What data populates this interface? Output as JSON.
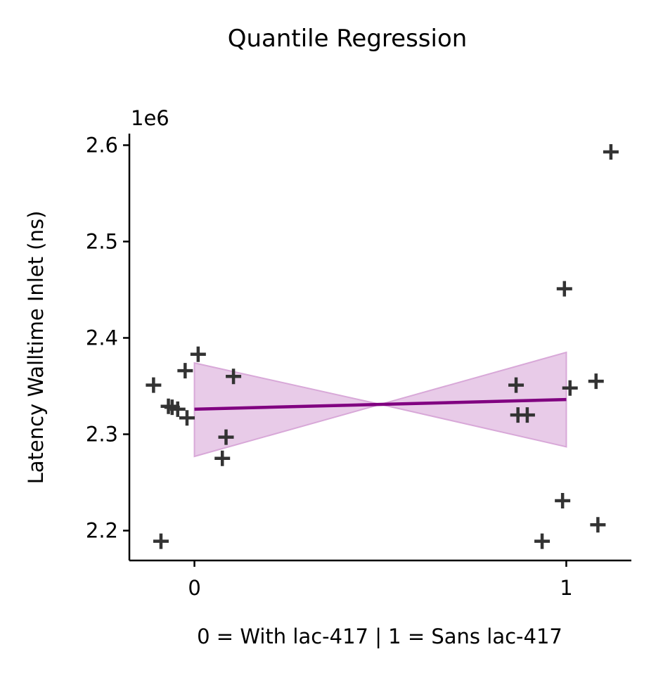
{
  "chart_data": {
    "type": "scatter",
    "title": "Quantile Regression",
    "xlabel": "0 = With lac-417 | 1 = Sans lac-417",
    "ylabel": "Latency Walltime Inlet (ns)",
    "y_offset_label": "1e6",
    "xlim": [
      -0.175,
      1.175
    ],
    "ylim": [
      2.169,
      2.612
    ],
    "x_ticks": [
      {
        "value": 0,
        "label": "0"
      },
      {
        "value": 1,
        "label": "1"
      }
    ],
    "y_ticks": [
      {
        "value": 2.2,
        "label": "2.2"
      },
      {
        "value": 2.3,
        "label": "2.3"
      },
      {
        "value": 2.4,
        "label": "2.4"
      },
      {
        "value": 2.5,
        "label": "2.5"
      },
      {
        "value": 2.6,
        "label": "2.6"
      }
    ],
    "grid": false,
    "points": [
      {
        "x": -0.11,
        "y": 2.351
      },
      {
        "x": -0.09,
        "y": 2.189
      },
      {
        "x": -0.07,
        "y": 2.329
      },
      {
        "x": -0.06,
        "y": 2.328
      },
      {
        "x": -0.045,
        "y": 2.326
      },
      {
        "x": -0.025,
        "y": 2.366
      },
      {
        "x": -0.02,
        "y": 2.317
      },
      {
        "x": 0.01,
        "y": 2.383
      },
      {
        "x": 0.075,
        "y": 2.275
      },
      {
        "x": 0.085,
        "y": 2.297
      },
      {
        "x": 0.105,
        "y": 2.36
      },
      {
        "x": 0.865,
        "y": 2.351
      },
      {
        "x": 0.87,
        "y": 2.32
      },
      {
        "x": 0.895,
        "y": 2.32
      },
      {
        "x": 0.935,
        "y": 2.189
      },
      {
        "x": 0.99,
        "y": 2.231
      },
      {
        "x": 0.995,
        "y": 2.451
      },
      {
        "x": 1.01,
        "y": 2.348
      },
      {
        "x": 1.08,
        "y": 2.355
      },
      {
        "x": 1.085,
        "y": 2.206
      },
      {
        "x": 1.12,
        "y": 2.593
      }
    ],
    "regression_line": {
      "x": [
        0,
        1
      ],
      "y": [
        2.326,
        2.336
      ]
    },
    "confidence_band": {
      "x": [
        0,
        0.5,
        1
      ],
      "upper": [
        2.374,
        2.331,
        2.385
      ],
      "lower": [
        2.277,
        2.331,
        2.287
      ]
    },
    "colors": {
      "points": "#333333",
      "line": "#800080",
      "band": "#d8a8d8"
    }
  }
}
